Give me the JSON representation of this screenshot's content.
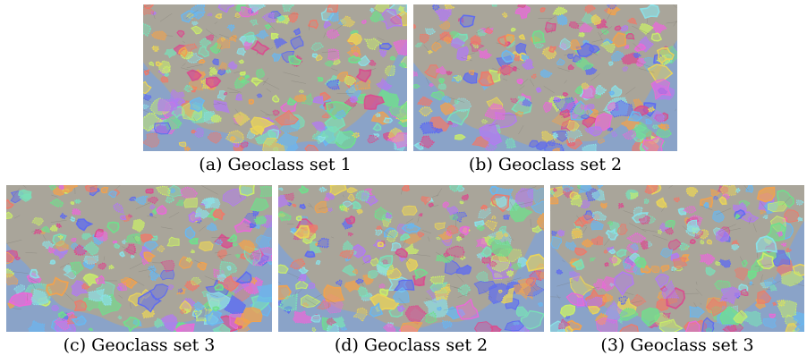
{
  "figure": {
    "panels": [
      {
        "caption": "(a) Geoclass set 1"
      },
      {
        "caption": "(b) Geoclass set 2"
      },
      {
        "caption": "(c) Geoclass set 3"
      },
      {
        "caption": "(d) Geoclass set 2"
      },
      {
        "caption": "(3) Geoclass set 3"
      }
    ]
  },
  "colors": {
    "ocean": "#8aa3c8",
    "land": "#a9a59a",
    "region_palette": [
      "#e86bd8",
      "#5f6cf0",
      "#6fe08c",
      "#e8d35a",
      "#ee7a6a",
      "#8be0e6",
      "#b27cf0",
      "#c9ed6a",
      "#f0a24f",
      "#6ab7f0",
      "#d84f8f",
      "#7adfb8"
    ]
  }
}
